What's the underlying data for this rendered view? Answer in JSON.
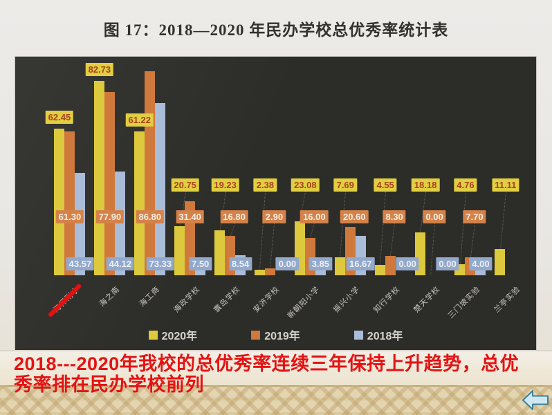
{
  "slide": {
    "title": "图 17：2018—2020 年民办学校总优秀率统计表",
    "caption_line1": "2018---2020年我校的总优秀率连续三年保持上升趋势，总优",
    "caption_line2": "秀率排在民办学校前列",
    "caption_color": "#e31313"
  },
  "chart_data": {
    "type": "bar",
    "title": "2018—2020 年民办学校总优秀率统计表",
    "categories": [
      "海师附小",
      "海之南",
      "海工商",
      "海政学校",
      "寰岛学校",
      "安济学校",
      "新朝阳小学",
      "振兴小学",
      "知行学校",
      "楚天学校",
      "三门坡实验",
      "兰亭实验"
    ],
    "series": [
      {
        "name": "2020年",
        "color": "#ddc93d",
        "label_bg": "#e2cf41",
        "label_text_color": "#a8401e",
        "values": [
          62.45,
          82.73,
          61.22,
          20.75,
          19.23,
          2.38,
          23.08,
          7.69,
          4.55,
          18.18,
          4.76,
          11.11
        ]
      },
      {
        "name": "2019年",
        "color": "#d0793c",
        "label_bg": "#d4824a",
        "label_text_color": "#f6ede1",
        "values": [
          61.3,
          77.9,
          86.8,
          31.4,
          16.8,
          2.9,
          16.0,
          20.6,
          8.3,
          0.0,
          7.7,
          null
        ]
      },
      {
        "name": "2018年",
        "color": "#a9bcd8",
        "label_bg": "#93a9cb",
        "label_text_color": "#eef1f6",
        "values": [
          43.57,
          44.12,
          73.33,
          7.5,
          8.54,
          0.0,
          3.85,
          16.67,
          0.0,
          0.0,
          4.0,
          null
        ]
      }
    ],
    "ylim": [
      0,
      100
    ],
    "grid": false,
    "legend_position": "bottom",
    "background": "#2c2c28",
    "axis_text_color": "#c9c7c1",
    "highlight": {
      "category_index": 0,
      "marker": "red-underline"
    }
  },
  "nav": {
    "back_arrow_name": "back",
    "back_arrow_fill": "#cde8f3",
    "back_arrow_border": "#3d7f93"
  },
  "theme": {
    "paper": "#e9e7e3",
    "band_cream": "#ece3cd",
    "band_pattern": "#e3d5b2"
  }
}
